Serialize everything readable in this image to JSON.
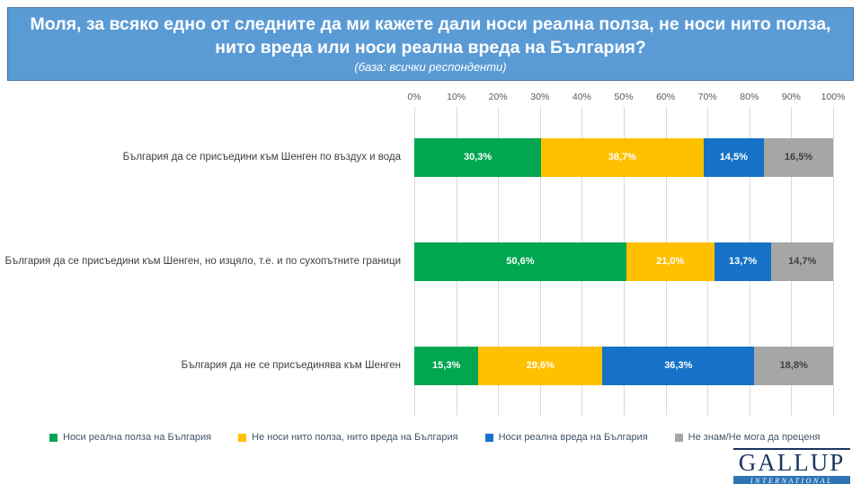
{
  "header": {
    "title": "Моля, за всяко едно от следните да ми кажете дали носи реална полза, не носи нито полза, нито вреда или носи реална вреда на България?",
    "subtitle": "(база: всички респонденти)",
    "banner_color": "#5b9bd5",
    "banner_border_color": "#41719c"
  },
  "chart_data": {
    "type": "bar",
    "stacked": true,
    "orientation": "horizontal",
    "grid": true,
    "legend_position": "bottom",
    "xlim": [
      0,
      100
    ],
    "x_ticks": [
      "0%",
      "10%",
      "20%",
      "30%",
      "40%",
      "50%",
      "60%",
      "70%",
      "80%",
      "90%",
      "100%"
    ],
    "categories": [
      "България да се присъедини към Шенген по въздух и вода",
      "България да се присъедини към Шенген, но изцяло, т.е. и по сухопътните граници",
      "България да не се присъединява към Шенген"
    ],
    "series": [
      {
        "name": "Носи реална полза на България",
        "color": "#00a650",
        "label_color": "#ffffff",
        "values": [
          30.3,
          50.6,
          15.3
        ],
        "labels": [
          "30,3%",
          "50,6%",
          "15,3%"
        ]
      },
      {
        "name": "Не носи нито полза, нито вреда на България",
        "color": "#ffc000",
        "label_color": "#ffffff",
        "values": [
          38.7,
          21.0,
          29.6
        ],
        "labels": [
          "38,7%",
          "21,0%",
          "29,6%"
        ]
      },
      {
        "name": "Носи реална вреда на България",
        "color": "#1572c6",
        "label_color": "#ffffff",
        "values": [
          14.5,
          13.7,
          36.3
        ],
        "labels": [
          "14,5%",
          "13,7%",
          "36,3%"
        ]
      },
      {
        "name": "Не знам/Не мога да преценя",
        "color": "#a6a6a6",
        "label_color": "#404040",
        "values": [
          16.5,
          14.7,
          18.8
        ],
        "labels": [
          "16,5%",
          "14,7%",
          "18,8%"
        ]
      }
    ]
  },
  "logo": {
    "line1": "GALLUP",
    "line2": "INTERNATIONAL"
  }
}
